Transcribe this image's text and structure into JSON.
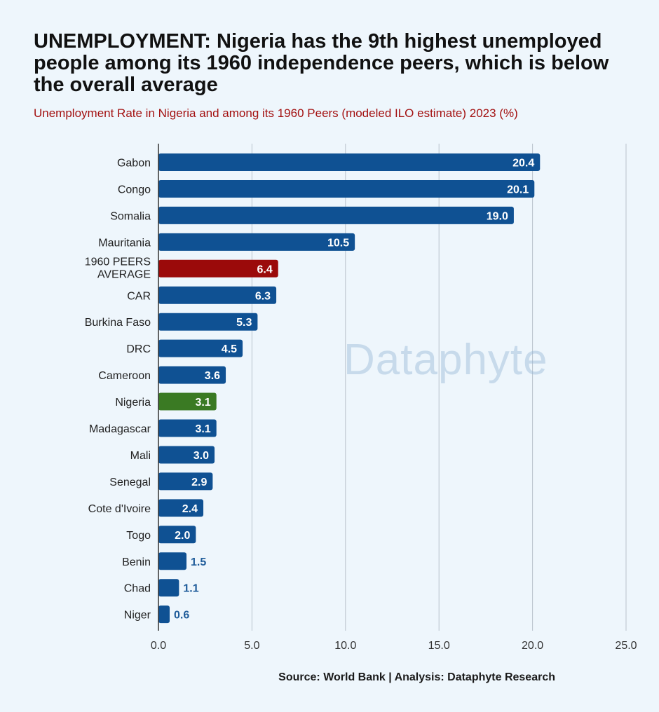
{
  "title": "UNEMPLOYMENT: Nigeria has the 9th highest unemployed people among its 1960 independence peers, which is below the overall average",
  "subtitle": "Unemployment Rate in Nigeria and among its 1960 Peers (modeled ILO estimate) 2023 (%)",
  "watermark": "Dataphyte",
  "source": "Source: World Bank | Analysis: Dataphyte Research",
  "colors": {
    "default_bar": "#0f5193",
    "average_bar": "#9b0a0a",
    "nigeria_bar": "#3a7a23",
    "label_outside": "#1f5c9a",
    "label_inside": "#ffffff",
    "grid": "#b9c3cc",
    "axis": "#333333"
  },
  "chart_data": {
    "type": "bar",
    "orientation": "horizontal",
    "categories": [
      "Gabon",
      "Congo",
      "Somalia",
      "Mauritania",
      "1960 PEERS AVERAGE",
      "CAR",
      "Burkina Faso",
      "DRC",
      "Cameroon",
      "Nigeria",
      "Madagascar",
      "Mali",
      "Senegal",
      "Cote d'Ivoire",
      "Togo",
      "Benin",
      "Chad",
      "Niger"
    ],
    "values": [
      20.4,
      20.1,
      19.0,
      10.5,
      6.4,
      6.3,
      5.3,
      4.5,
      3.6,
      3.1,
      3.1,
      3.0,
      2.9,
      2.4,
      2.0,
      1.5,
      1.1,
      0.6
    ],
    "value_labels": [
      "20.4",
      "20.1",
      "19.0",
      "10.5",
      "6.4",
      "6.3",
      "5.3",
      "4.5",
      "3.6",
      "3.1",
      "3.1",
      "3.0",
      "2.9",
      "2.4",
      "2.0",
      "1.5",
      "1.1",
      "0.6"
    ],
    "highlight": {
      "1960 PEERS AVERAGE": "average",
      "Nigeria": "nigeria"
    },
    "xlim": [
      0,
      25
    ],
    "xticks": [
      0,
      5,
      10,
      15,
      20,
      25
    ],
    "xtick_labels": [
      "0.0",
      "5.0",
      "10.0",
      "15.0",
      "20.0",
      "25.0"
    ],
    "xlabel": "",
    "ylabel": "",
    "grid": "vertical",
    "legend": "none"
  }
}
